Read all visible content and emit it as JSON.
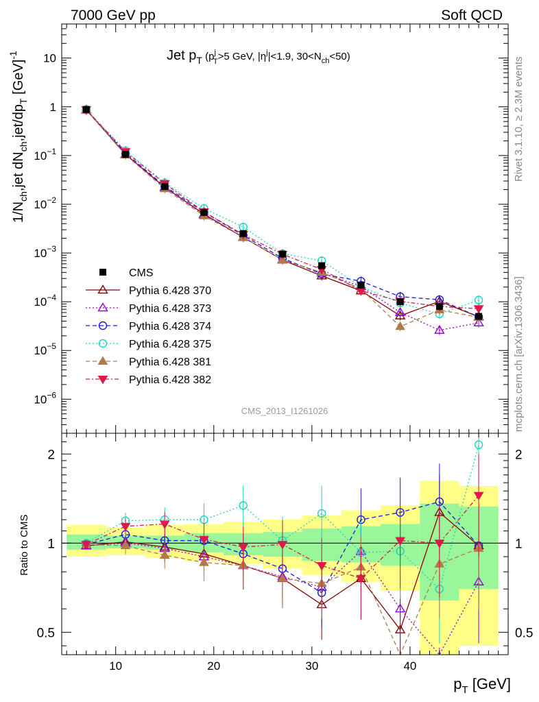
{
  "header": {
    "left": "7000 GeV pp",
    "right": "Soft QCD"
  },
  "side_labels": {
    "rivet": "Rivet 3.1.10, ≥ 2.3M events",
    "mcplots": "mcplots.cern.ch [arXiv:1306.3436]"
  },
  "chart_data": [
    {
      "type": "line",
      "panel": "main",
      "title": "Jet p_T (p_T^j>5 GeV, |η^j|<1.9, 30<N_ch<50)",
      "title_parts": {
        "main": "Jet p",
        "main_sub": "T",
        "open": " (p",
        "p_sup": "j",
        "p_sub": "T",
        "mid": ">5 GeV, |η",
        "eta_sup": "j",
        "mid2": "|<1.9, 30<N",
        "n_sub": "ch",
        "close": "<50)"
      },
      "xlabel": "p_T [GeV]",
      "ylabel": "1/N_ch,jet dN_ch,jet/dp_T [GeV]^-1",
      "ylabel_parts": {
        "a": "1/N",
        "a_sub": "ch",
        "b": ",jet dN",
        "b_sub": "ch",
        "c": ",jet/dp",
        "c_sub": "T",
        "d": " [GeV]",
        "d_sup": "-1"
      },
      "xlabel_parts": {
        "a": "p",
        "a_sub": "T",
        "b": " [GeV]"
      },
      "watermark": "CMS_2013_I1261026",
      "xlim": [
        4.5,
        50
      ],
      "ylim": [
        2e-07,
        50
      ],
      "yscale": "log",
      "x_ticks": [
        10,
        20,
        30,
        40
      ],
      "y_ticks": [
        {
          "value": 10,
          "base": "10",
          "exp": ""
        },
        {
          "value": 1,
          "base": "1",
          "exp": ""
        },
        {
          "value": 0.1,
          "base": "10",
          "exp": "−1"
        },
        {
          "value": 0.01,
          "base": "10",
          "exp": "−2"
        },
        {
          "value": 0.001,
          "base": "10",
          "exp": "−3"
        },
        {
          "value": 0.0001,
          "base": "10",
          "exp": "−4"
        },
        {
          "value": 1e-05,
          "base": "10",
          "exp": "−5"
        },
        {
          "value": 1e-06,
          "base": "10",
          "exp": "−6"
        }
      ],
      "x": [
        7,
        11,
        15,
        19,
        23,
        27,
        31,
        35,
        39,
        43,
        47
      ],
      "data_series": {
        "name": "CMS",
        "color": "#000000",
        "values": [
          0.88,
          0.105,
          0.023,
          0.0068,
          0.0025,
          0.00095,
          0.00055,
          0.00022,
          0.0001,
          8e-05,
          5e-05
        ]
      },
      "series": [
        {
          "name": "Pythia 6.428 370",
          "color": "#8B0000",
          "marker": "triangle-up-open",
          "dash": "",
          "values": [
            0.86,
            0.106,
            0.0223,
            0.0063,
            0.0021,
            0.00072,
            0.00034,
            0.000168,
            5.15e-05,
            0.000102,
            4.9e-05
          ]
        },
        {
          "name": "Pythia 6.428 373",
          "color": "#9400D3",
          "marker": "triangle-up-open",
          "dash": "2,3",
          "values": [
            0.865,
            0.105,
            0.0222,
            0.0061,
            0.0021,
            0.00073,
            0.00039,
            0.000206,
            6.05e-05,
            2.6e-05,
            3.7e-05
          ]
        },
        {
          "name": "Pythia 6.428 374",
          "color": "#1a1ad6",
          "marker": "circle-open",
          "dash": "6,4",
          "values": [
            0.87,
            0.112,
            0.0235,
            0.0069,
            0.0023,
            0.00078,
            0.00037,
            0.000264,
            0.000127,
            0.00011,
            4.9e-05
          ]
        },
        {
          "name": "Pythia 6.428 375",
          "color": "#20d0c0",
          "marker": "circle-open",
          "dash": "2,3",
          "values": [
            0.88,
            0.125,
            0.0275,
            0.0082,
            0.0034,
            0.00097,
            0.00069,
            0.000205,
            9.4e-05,
            5.6e-05,
            0.000108
          ]
        },
        {
          "name": "Pythia 6.428 381",
          "color": "#b07a4a",
          "marker": "triangle-up-filled",
          "dash": "6,4",
          "values": [
            0.87,
            0.103,
            0.0209,
            0.0058,
            0.0021,
            0.00072,
            0.0004,
            0.000183,
            3.1e-05,
            6.8e-05,
            4.8e-05
          ]
        },
        {
          "name": "Pythia 6.428 382",
          "color": "#dc1a4a",
          "marker": "triangle-down-filled",
          "dash": "6,3,2,3",
          "values": [
            0.875,
            0.12,
            0.0265,
            0.007,
            0.0024,
            0.00094,
            0.00046,
            0.000168,
            0.000102,
            8e-05,
            7.2e-05
          ]
        }
      ]
    },
    {
      "type": "line",
      "panel": "ratio",
      "ylabel": "Ratio to CMS",
      "xlim": [
        4.5,
        50
      ],
      "ylim": [
        0.42,
        2.35
      ],
      "yscale": "log",
      "y_ticks": [
        {
          "value": 0.5,
          "label": "0.5"
        },
        {
          "value": 1,
          "label": "1"
        },
        {
          "value": 2,
          "label": "2"
        }
      ],
      "x": [
        7,
        11,
        15,
        19,
        23,
        27,
        31,
        35,
        39,
        43,
        47
      ],
      "band_edges": [
        5,
        9,
        13,
        17,
        21,
        25,
        29,
        33,
        37,
        41,
        45,
        49
      ],
      "band_inner": [
        [
          0.95,
          1.07
        ],
        [
          0.96,
          1.06
        ],
        [
          0.95,
          1.06
        ],
        [
          0.93,
          1.08
        ],
        [
          0.91,
          1.08
        ],
        [
          0.9,
          1.09
        ],
        [
          0.87,
          1.12
        ],
        [
          0.86,
          1.14
        ],
        [
          0.84,
          1.16
        ],
        [
          0.64,
          1.36
        ],
        [
          0.7,
          1.33
        ]
      ],
      "band_outer": [
        [
          0.9,
          1.15
        ],
        [
          0.91,
          1.13
        ],
        [
          0.89,
          1.15
        ],
        [
          0.87,
          1.16
        ],
        [
          0.85,
          1.18
        ],
        [
          0.82,
          1.2
        ],
        [
          0.78,
          1.24
        ],
        [
          0.74,
          1.29
        ],
        [
          0.69,
          1.34
        ],
        [
          0.4,
          1.62
        ],
        [
          0.45,
          1.56
        ]
      ],
      "series": [
        {
          "name": "Pythia 6.428 370",
          "values": [
            0.98,
            1.01,
            0.97,
            0.92,
            0.84,
            0.76,
            0.62,
            0.76,
            0.51,
            1.27,
            0.98
          ]
        },
        {
          "name": "Pythia 6.428 373",
          "values": [
            0.98,
            1.0,
            0.96,
            0.9,
            0.84,
            0.77,
            0.71,
            0.94,
            0.6,
            0.33,
            0.74
          ]
        },
        {
          "name": "Pythia 6.428 374",
          "values": [
            0.99,
            1.07,
            1.02,
            1.02,
            0.92,
            0.82,
            0.68,
            1.2,
            1.27,
            1.38,
            0.98
          ]
        },
        {
          "name": "Pythia 6.428 375",
          "values": [
            1.0,
            1.19,
            1.2,
            1.2,
            1.34,
            1.02,
            1.26,
            0.93,
            0.94,
            0.7,
            2.15
          ]
        },
        {
          "name": "Pythia 6.428 381",
          "values": [
            0.99,
            0.98,
            0.91,
            0.86,
            0.84,
            0.76,
            0.73,
            0.83,
            0.31,
            0.85,
            0.96
          ]
        },
        {
          "name": "Pythia 6.428 382",
          "values": [
            0.99,
            1.14,
            1.16,
            1.03,
            0.97,
            0.99,
            0.84,
            0.76,
            1.02,
            1.0,
            1.45
          ]
        }
      ]
    }
  ]
}
